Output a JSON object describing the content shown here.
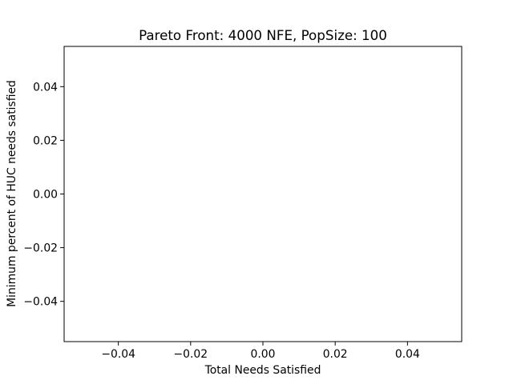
{
  "chart_data": {
    "type": "scatter",
    "title": "Pareto Front: 4000 NFE, PopSize: 100",
    "xlabel": "Total Needs Satisfied",
    "ylabel": "Minimum percent of HUC needs satisfied",
    "xlim": [
      -0.055,
      0.055
    ],
    "ylim": [
      -0.055,
      0.055
    ],
    "x_ticks": [
      -0.04,
      -0.02,
      0.0,
      0.02,
      0.04
    ],
    "x_tick_labels": [
      "−0.04",
      "−0.02",
      "0.00",
      "0.02",
      "0.04"
    ],
    "y_ticks": [
      -0.04,
      -0.02,
      0.0,
      0.02,
      0.04
    ],
    "y_tick_labels": [
      "−0.04",
      "−0.02",
      "0.00",
      "0.02",
      "0.04"
    ],
    "grid": false,
    "series": [
      {
        "x": [],
        "y": []
      }
    ]
  }
}
